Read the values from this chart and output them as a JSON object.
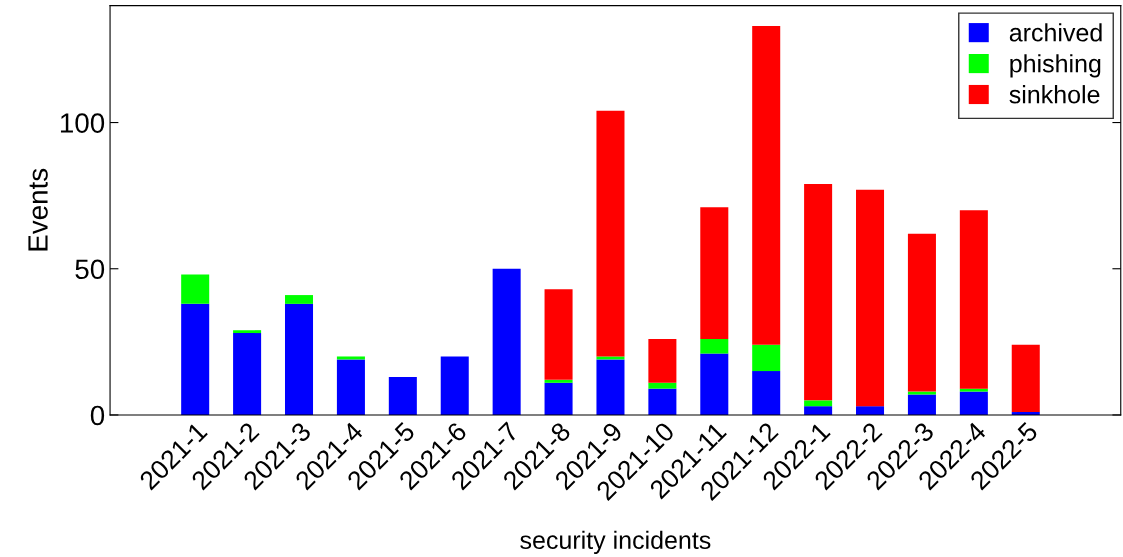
{
  "chart_data": {
    "type": "bar",
    "stacked": true,
    "xlabel": "security incidents",
    "ylabel": "Events",
    "categories": [
      "2021-1",
      "2021-2",
      "2021-3",
      "2021-4",
      "2021-5",
      "2021-6",
      "2021-7",
      "2021-8",
      "2021-9",
      "2021-10",
      "2021-11",
      "2021-12",
      "2022-1",
      "2022-2",
      "2022-3",
      "2022-4",
      "2022-5"
    ],
    "series": [
      {
        "name": "archived",
        "color": "#0000ff",
        "values": [
          38,
          28,
          38,
          19,
          13,
          20,
          50,
          11,
          19,
          9,
          21,
          15,
          3,
          3,
          7,
          8,
          1
        ]
      },
      {
        "name": "phishing",
        "color": "#00ff00",
        "values": [
          10,
          1,
          3,
          1,
          0,
          0,
          0,
          1,
          1,
          2,
          5,
          9,
          2,
          0,
          1,
          1,
          0
        ]
      },
      {
        "name": "sinkhole",
        "color": "#ff0000",
        "values": [
          0,
          0,
          0,
          0,
          0,
          0,
          0,
          31,
          84,
          15,
          45,
          109,
          74,
          74,
          54,
          61,
          23
        ]
      }
    ],
    "ylim": [
      0,
      140
    ],
    "yticks": [
      0,
      50,
      100
    ],
    "grid": false,
    "legend": "top right"
  }
}
